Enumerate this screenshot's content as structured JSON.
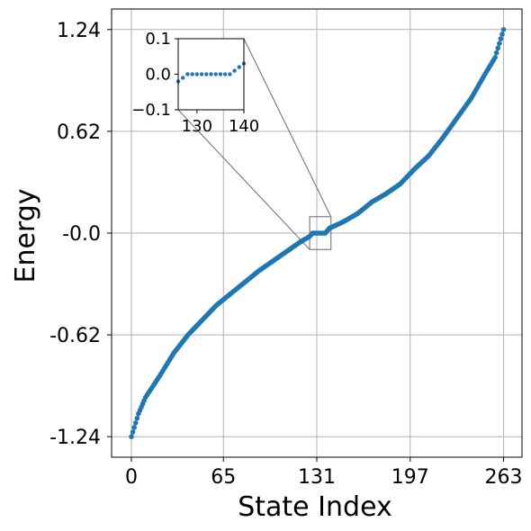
{
  "chart_data": {
    "type": "scatter",
    "xlabel": "State Index",
    "ylabel": "Energy",
    "xlim": [
      -14,
      276
    ],
    "ylim": [
      -1.365,
      1.365
    ],
    "x_ticks": [
      0,
      65,
      131,
      197,
      263
    ],
    "x_tick_labels": [
      "0",
      "65",
      "131",
      "197",
      "263"
    ],
    "y_ticks": [
      -1.24,
      -0.62,
      0.0,
      0.62,
      1.24
    ],
    "y_tick_labels": [
      "-1.24",
      "-0.62",
      "-0.0",
      "0.62",
      "1.24"
    ],
    "grid": true,
    "marker_color": "#1f77b4",
    "series": [
      {
        "n_points": 264,
        "keypoints": [
          {
            "x": 0,
            "y": -1.24
          },
          {
            "x": 5,
            "y": -1.1
          },
          {
            "x": 10,
            "y": -1.0
          },
          {
            "x": 20,
            "y": -0.87
          },
          {
            "x": 30,
            "y": -0.73
          },
          {
            "x": 40,
            "y": -0.62
          },
          {
            "x": 50,
            "y": -0.53
          },
          {
            "x": 60,
            "y": -0.44
          },
          {
            "x": 70,
            "y": -0.37
          },
          {
            "x": 80,
            "y": -0.3
          },
          {
            "x": 90,
            "y": -0.23
          },
          {
            "x": 100,
            "y": -0.17
          },
          {
            "x": 110,
            "y": -0.11
          },
          {
            "x": 120,
            "y": -0.05
          },
          {
            "x": 126,
            "y": -0.02
          },
          {
            "x": 128,
            "y": 0.0
          },
          {
            "x": 137,
            "y": 0.0
          },
          {
            "x": 140,
            "y": 0.03
          },
          {
            "x": 150,
            "y": 0.07
          },
          {
            "x": 160,
            "y": 0.12
          },
          {
            "x": 170,
            "y": 0.19
          },
          {
            "x": 180,
            "y": 0.24
          },
          {
            "x": 190,
            "y": 0.3
          },
          {
            "x": 200,
            "y": 0.39
          },
          {
            "x": 210,
            "y": 0.47
          },
          {
            "x": 220,
            "y": 0.58
          },
          {
            "x": 230,
            "y": 0.7
          },
          {
            "x": 240,
            "y": 0.82
          },
          {
            "x": 250,
            "y": 0.97
          },
          {
            "x": 257,
            "y": 1.07
          },
          {
            "x": 263,
            "y": 1.24
          }
        ]
      }
    ],
    "zoom_region": {
      "xlim": [
        126,
        141
      ],
      "ylim": [
        -0.1,
        0.1
      ]
    },
    "inset": {
      "xlim": [
        126,
        140
      ],
      "ylim": [
        -0.1,
        0.1
      ],
      "x_ticks": [
        130,
        140
      ],
      "x_tick_labels": [
        "130",
        "140"
      ],
      "y_ticks": [
        -0.1,
        0.0,
        0.1
      ],
      "y_tick_labels": [
        "−0.1",
        "0.0",
        "0.1"
      ]
    }
  }
}
